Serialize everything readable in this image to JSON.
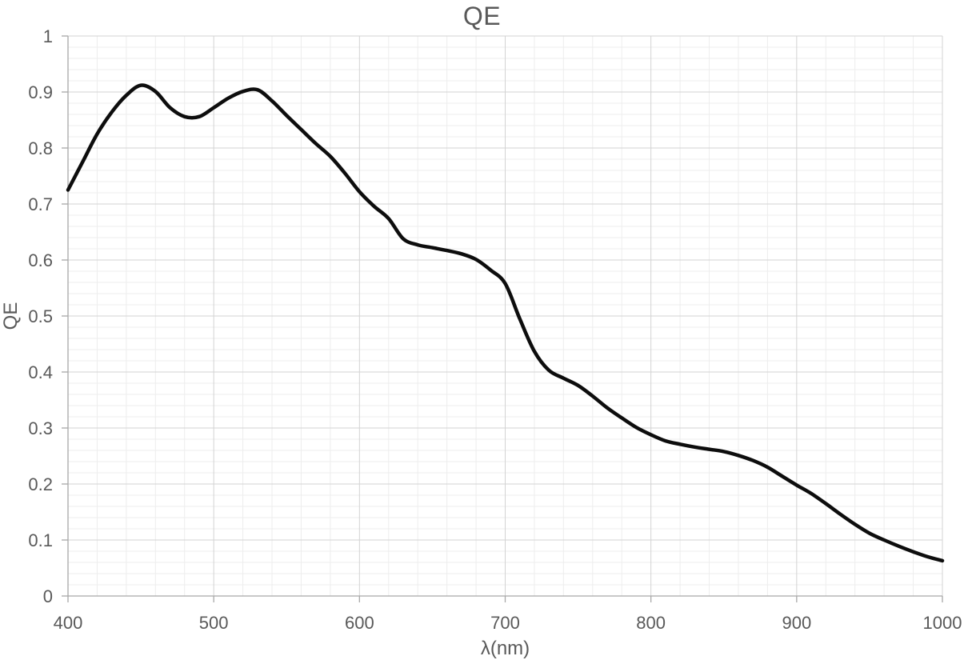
{
  "chart_data": {
    "type": "line",
    "title": "QE",
    "xlabel": "λ(nm)",
    "ylabel": "QE",
    "xlim": [
      400,
      1000
    ],
    "ylim": [
      0,
      1
    ],
    "x_major_step": 100,
    "x_minor_step": 20,
    "y_major_step": 0.1,
    "y_minor_step": 0.02,
    "x_tick_labels": [
      "400",
      "500",
      "600",
      "700",
      "800",
      "900",
      "1000"
    ],
    "y_tick_labels": [
      "0",
      "0.1",
      "0.2",
      "0.3",
      "0.4",
      "0.5",
      "0.6",
      "0.7",
      "0.8",
      "0.9",
      "1"
    ],
    "grid": {
      "major": true,
      "minor": true
    },
    "legend": "none",
    "series": [
      {
        "name": "QE",
        "smooth": true,
        "x": [
          400,
          410,
          420,
          430,
          440,
          450,
          460,
          470,
          480,
          490,
          500,
          510,
          520,
          530,
          540,
          550,
          560,
          570,
          580,
          590,
          600,
          610,
          620,
          630,
          640,
          650,
          660,
          670,
          680,
          690,
          700,
          710,
          720,
          730,
          740,
          750,
          760,
          770,
          780,
          790,
          800,
          810,
          820,
          830,
          840,
          850,
          860,
          870,
          880,
          890,
          900,
          910,
          920,
          930,
          940,
          950,
          960,
          970,
          980,
          990,
          1000
        ],
        "y": [
          0.725,
          0.775,
          0.825,
          0.864,
          0.894,
          0.912,
          0.901,
          0.872,
          0.856,
          0.856,
          0.872,
          0.889,
          0.901,
          0.904,
          0.884,
          0.858,
          0.833,
          0.808,
          0.785,
          0.755,
          0.722,
          0.696,
          0.674,
          0.638,
          0.627,
          0.622,
          0.617,
          0.611,
          0.601,
          0.582,
          0.558,
          0.495,
          0.437,
          0.403,
          0.389,
          0.376,
          0.357,
          0.336,
          0.318,
          0.301,
          0.288,
          0.277,
          0.271,
          0.266,
          0.262,
          0.258,
          0.251,
          0.242,
          0.23,
          0.214,
          0.198,
          0.183,
          0.165,
          0.146,
          0.128,
          0.112,
          0.1,
          0.089,
          0.079,
          0.07,
          0.063
        ]
      }
    ],
    "colors": {
      "text": "#595959",
      "series_line": "#0d0d0d",
      "major_grid": "#d3d3d3",
      "minor_grid": "#ededed",
      "axis_line": "#a8a8a8",
      "background": "#ffffff"
    }
  }
}
